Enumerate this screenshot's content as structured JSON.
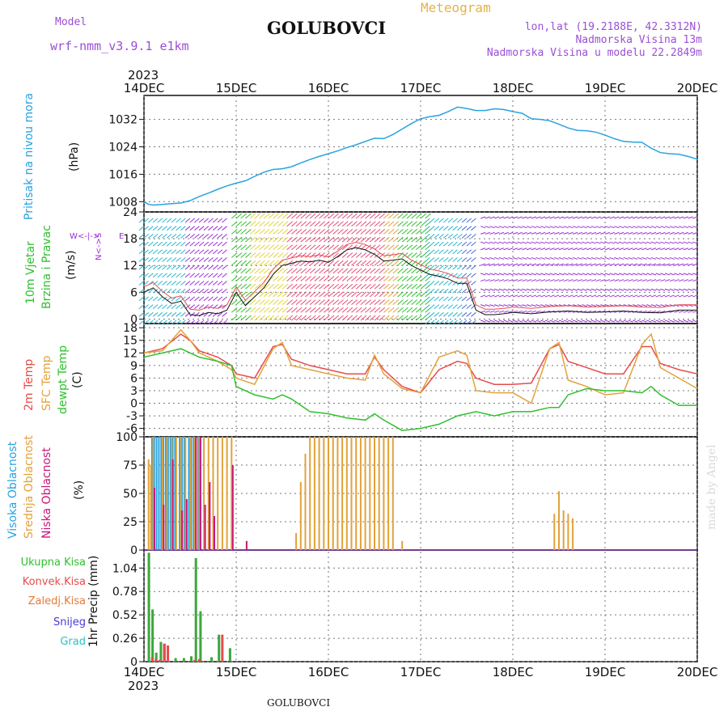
{
  "header": {
    "model_label": "Model",
    "model_name": "wrf-nmm_v3.9.1 e1km",
    "station": "GOLUBOVCI",
    "meteogram": "Meteogram",
    "lonlat": "lon,lat (19.2188E, 42.3312N)",
    "altitude": "Nadmorska Visina 13m",
    "model_altitude": "Nadmorska Visina u modelu 22.2849m",
    "year_top": "2023",
    "year_bottom": "2023",
    "footer_station": "GOLUBOVCI",
    "credit": "made by Angel"
  },
  "colors": {
    "pressure": "#29a3e0",
    "temp2m": "#e84b4b",
    "sfc_temp": "#e2a23a",
    "dewpt": "#2fc02f",
    "high_cloud": "#29a3e0",
    "mid_cloud": "#e2a23a",
    "low_cloud": "#c8157a",
    "total_precip": "#3aa83a",
    "conv_precip": "#e84b4b",
    "frozen_precip": "#e27a3a",
    "snow": "#4a3ad6",
    "graupel": "#29c0c0",
    "wind_purple": "#9a2fd6"
  },
  "x_axis": {
    "day_labels": [
      "14DEC",
      "15DEC",
      "16DEC",
      "17DEC",
      "18DEC",
      "19DEC",
      "20DEC"
    ]
  },
  "panels": {
    "pressure": {
      "ylabel_a": "Pritisak na nivou mora",
      "ylabel_b": "(hPa)"
    },
    "wind": {
      "ylabel_a": "10m Vjetar",
      "ylabel_b": "Brzina i Pravac",
      "ylabel_c": "(m/s)",
      "compass_ns": "N<->S",
      "compass_w": "W",
      "compass_e": "E"
    },
    "temp": {
      "ylabel_a": "2m Temp",
      "ylabel_b": "SFC Temp",
      "ylabel_c": "dewpt Temp",
      "ylabel_d": "(C)"
    },
    "cloud": {
      "ylabel_a": "Visoka Oblacnost",
      "ylabel_b": "Srednja Oblacnost",
      "ylabel_c": "Niska Oblacnost",
      "ylabel_d": "(%)"
    },
    "precip": {
      "ylabel": "1hr Precip (mm)",
      "legend": [
        "Ukupna Kisa",
        "Konvek.Kisa",
        "Zaledj.Kisa",
        "Snijeg",
        "Grad"
      ]
    }
  },
  "chart_data": [
    {
      "type": "line",
      "name": "pressure",
      "ylabel": "(hPa)",
      "ylim": [
        1005,
        1039
      ],
      "yticks": [
        1008,
        1016,
        1024,
        1032
      ],
      "x_days": [
        0,
        0.05,
        0.1,
        0.2,
        0.3,
        0.4,
        0.5,
        0.6,
        0.7,
        0.8,
        0.9,
        1.0,
        1.1,
        1.2,
        1.3,
        1.4,
        1.5,
        1.6,
        1.7,
        1.8,
        1.9,
        2.0,
        2.1,
        2.2,
        2.3,
        2.4,
        2.5,
        2.6,
        2.7,
        2.8,
        2.9,
        3.0,
        3.1,
        3.2,
        3.3,
        3.4,
        3.5,
        3.6,
        3.7,
        3.8,
        3.9,
        4.0,
        4.1,
        4.2,
        4.3,
        4.4,
        4.5,
        4.6,
        4.7,
        4.8,
        4.9,
        5.0,
        5.1,
        5.2,
        5.3,
        5.4,
        5.5,
        5.6,
        5.7,
        5.8,
        5.9,
        6.0
      ],
      "values": [
        1008,
        1007.2,
        1007,
        1007.2,
        1007.4,
        1007.6,
        1008.3,
        1009.5,
        1010.5,
        1011.6,
        1012.6,
        1013.4,
        1014.1,
        1015.4,
        1016.6,
        1017.4,
        1017.6,
        1018.2,
        1019.3,
        1020.3,
        1021.2,
        1022,
        1022.8,
        1023.8,
        1024.6,
        1025.6,
        1026.5,
        1026.4,
        1027.6,
        1029.2,
        1030.8,
        1032.2,
        1032.8,
        1033.2,
        1034.3,
        1035.6,
        1035.2,
        1034.6,
        1034.6,
        1035.1,
        1034.9,
        1034.3,
        1033.8,
        1032.2,
        1032,
        1031.6,
        1030.6,
        1029.5,
        1028.8,
        1028.7,
        1028.3,
        1027.4,
        1026.4,
        1025.6,
        1025.4,
        1025.3,
        1023.6,
        1022.3,
        1022,
        1021.8,
        1021.2,
        1020.4
      ]
    },
    {
      "type": "line",
      "name": "wind_speed",
      "ylabel": "(m/s)",
      "ylim": [
        -1,
        24
      ],
      "yticks": [
        0,
        6,
        12,
        18,
        24
      ],
      "x_days": [
        0,
        0.1,
        0.2,
        0.3,
        0.4,
        0.5,
        0.6,
        0.7,
        0.8,
        0.9,
        1.0,
        1.1,
        1.2,
        1.3,
        1.4,
        1.5,
        1.6,
        1.7,
        1.8,
        1.9,
        2.0,
        2.1,
        2.2,
        2.3,
        2.4,
        2.5,
        2.6,
        2.7,
        2.8,
        2.9,
        3.0,
        3.1,
        3.2,
        3.3,
        3.4,
        3.5,
        3.6,
        3.7,
        3.8,
        3.9,
        4.0,
        4.2,
        4.4,
        4.6,
        4.8,
        5.0,
        5.2,
        5.4,
        5.6,
        5.8,
        6.0
      ],
      "values": [
        6,
        7,
        5,
        3.5,
        4,
        1,
        0.8,
        1.5,
        1.2,
        2,
        6,
        3,
        5,
        7,
        10,
        12,
        12.5,
        13,
        12.8,
        13.2,
        12.7,
        14,
        15.5,
        16,
        15.5,
        14.5,
        13,
        13.2,
        13.5,
        12,
        11,
        10,
        9.6,
        9,
        8,
        8,
        2,
        1,
        1,
        1.2,
        1.5,
        1.2,
        1.6,
        1.8,
        1.5,
        1.6,
        1.8,
        1.5,
        1.4,
        2,
        2
      ]
    },
    {
      "type": "line",
      "name": "temperature",
      "ylabel": "(C)",
      "ylim": [
        -8,
        19
      ],
      "yticks": [
        -6,
        -3,
        0,
        3,
        6,
        9,
        12,
        15,
        18
      ],
      "x_days": [
        0,
        0.2,
        0.4,
        0.5,
        0.6,
        0.8,
        0.95,
        1.0,
        1.2,
        1.4,
        1.5,
        1.6,
        1.8,
        2.0,
        2.2,
        2.4,
        2.5,
        2.6,
        2.8,
        3.0,
        3.2,
        3.4,
        3.5,
        3.6,
        3.8,
        4.0,
        4.2,
        4.4,
        4.5,
        4.6,
        4.8,
        5.0,
        5.2,
        5.4,
        5.5,
        5.6,
        5.8,
        6.0
      ],
      "series": [
        {
          "name": "2m Temp",
          "values": [
            12,
            13,
            16.5,
            15,
            12.5,
            11,
            9,
            7,
            6,
            13.5,
            14,
            10.5,
            9,
            8,
            7,
            7,
            11,
            8,
            4,
            2.5,
            8,
            10,
            9.5,
            6,
            4.5,
            4.5,
            4.8,
            13,
            14,
            10,
            8.5,
            7,
            7,
            13.5,
            13.5,
            9.5,
            8,
            7
          ]
        },
        {
          "name": "SFC Temp",
          "values": [
            12,
            12.5,
            17.5,
            15,
            12,
            10,
            8,
            6,
            4.5,
            13,
            14.5,
            9,
            8,
            7,
            6,
            5.5,
            11.5,
            7,
            3.5,
            2.5,
            11,
            12.5,
            11.5,
            3,
            2.5,
            2.5,
            0,
            13,
            14.5,
            5.5,
            4,
            2,
            2.5,
            14,
            16.5,
            8.5,
            6,
            3.5
          ]
        },
        {
          "name": "dewpt Temp",
          "values": [
            11,
            12,
            13,
            12,
            11,
            10,
            9,
            4,
            2,
            1,
            2,
            1,
            -2,
            -2.5,
            -3.5,
            -4,
            -2.5,
            -4,
            -6.5,
            -6,
            -5,
            -3,
            -2.5,
            -2,
            -3,
            -2,
            -2,
            -1,
            -1,
            2,
            3.5,
            3,
            3,
            2.5,
            4,
            2,
            -0.5,
            -0.5
          ]
        }
      ]
    },
    {
      "type": "bar",
      "name": "cloud_cover",
      "ylabel": "(%)",
      "ylim": [
        0,
        100
      ],
      "yticks": [
        0,
        25,
        50,
        75,
        100
      ],
      "series": [
        {
          "name": "Visoka Oblacnost",
          "x_days": [
            0.1,
            0.125,
            0.15,
            0.175,
            0.2,
            0.225,
            0.25,
            0.275,
            0.3,
            0.325,
            0.35,
            0.4,
            0.425,
            0.45,
            0.5,
            0.525,
            0.55,
            0.575,
            0.6
          ],
          "values": [
            100,
            100,
            100,
            100,
            100,
            100,
            100,
            100,
            100,
            100,
            100,
            100,
            100,
            100,
            100,
            100,
            100,
            100,
            100
          ]
        },
        {
          "name": "Srednja Oblacnost",
          "x_days": [
            0.05,
            0.075,
            0.1,
            0.2,
            0.25,
            0.3,
            0.35,
            0.4,
            0.45,
            0.5,
            0.55,
            0.6,
            0.65,
            0.7,
            0.75,
            0.8,
            0.85,
            0.9,
            0.95,
            1.65,
            1.7,
            1.75,
            1.8,
            1.85,
            1.9,
            1.95,
            2.0,
            2.05,
            2.1,
            2.15,
            2.2,
            2.25,
            2.3,
            2.35,
            2.4,
            2.45,
            2.5,
            2.55,
            2.6,
            2.65,
            2.7,
            2.8,
            4.45,
            4.5,
            4.55,
            4.6,
            4.65
          ],
          "values": [
            80,
            75,
            100,
            100,
            100,
            100,
            100,
            100,
            100,
            100,
            100,
            100,
            100,
            100,
            100,
            100,
            100,
            100,
            100,
            15,
            60,
            85,
            100,
            100,
            100,
            100,
            100,
            100,
            100,
            100,
            100,
            100,
            100,
            100,
            100,
            100,
            100,
            100,
            100,
            100,
            100,
            8,
            32,
            52,
            35,
            32,
            28
          ]
        },
        {
          "name": "Niska Oblacnost",
          "x_days": [
            0.1,
            0.2,
            0.3,
            0.4,
            0.45,
            0.55,
            0.6,
            0.65,
            0.7,
            0.75,
            0.95,
            1.1
          ],
          "values": [
            55,
            40,
            80,
            35,
            45,
            100,
            100,
            40,
            60,
            30,
            75,
            8
          ]
        }
      ]
    },
    {
      "type": "bar",
      "name": "precip",
      "ylabel": "1hr Precip (mm)",
      "ylim": [
        0,
        1.24
      ],
      "yticks": [
        0,
        0.26,
        0.52,
        0.78,
        1.04
      ],
      "series": [
        {
          "name": "Ukupna Kisa",
          "x_days": [
            0.04,
            0.08,
            0.12,
            0.17,
            0.21,
            0.33,
            0.42,
            0.5,
            0.55,
            0.6,
            0.72,
            0.8,
            0.92
          ],
          "values": [
            1.21,
            0.58,
            0.1,
            0.22,
            0.2,
            0.04,
            0.04,
            0.06,
            1.15,
            0.56,
            0.05,
            0.3,
            0.15
          ]
        },
        {
          "name": "Konvek.Kisa",
          "x_days": [
            0.05,
            0.09,
            0.13,
            0.18,
            0.22,
            0.51,
            0.56,
            0.81
          ],
          "values": [
            0.05,
            0.03,
            0.02,
            0.2,
            0.18,
            0.02,
            0.03,
            0.3
          ]
        }
      ]
    }
  ]
}
